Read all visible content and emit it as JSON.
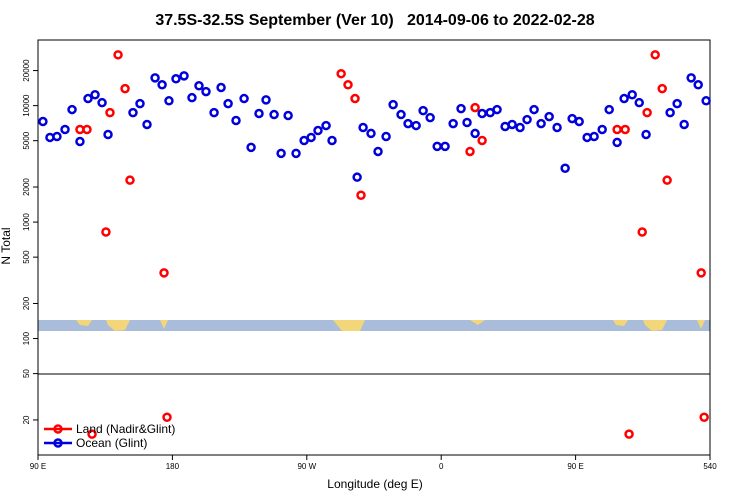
{
  "chart_data": {
    "type": "scatter",
    "title": "37.5S-32.5S September (Ver 10)   2014-09-06 to 2022-02-28",
    "x_label": "Longitude (deg E)",
    "y_label": "N Total",
    "log_y": true,
    "legend": "bottom-left",
    "xlim": [
      90,
      540
    ],
    "xticks": [
      {
        "value": 90,
        "label": "90 E"
      },
      180,
      {
        "value": 270,
        "label": "90 W"
      },
      {
        "value": 360,
        "label": "0"
      },
      {
        "value": 450,
        "label": "90 E"
      },
      540
    ],
    "ylim": [
      10,
      36600
    ],
    "yticks": [
      20,
      50,
      100,
      200,
      500,
      1000,
      2000,
      5000,
      10000,
      20000
    ],
    "series": [
      {
        "name": "Land (Nadir&Glint)",
        "color": "#ff0000",
        "x": [
          118.1,
          122.8,
          135.5,
          138.2,
          143.6,
          148.3,
          151.6,
          174.4,
          176.4,
          126.2,
          293.0,
          297.6,
          302.3,
          306.3,
          379.3,
          382.7,
          387.4,
          477.8,
          483.2,
          485.8,
          494.6,
          497.9,
          503.3,
          508.0,
          511.3,
          534.1,
          536.1
        ],
        "values": [
          6240,
          6240,
          822,
          8710,
          27300,
          14000,
          2290,
          366,
          21.1,
          15.1,
          18800,
          15100,
          11500,
          1700,
          4040,
          9620,
          5020,
          6240,
          6240,
          15.1,
          822,
          8710,
          27300,
          14000,
          2290,
          366,
          21.1
        ]
      },
      {
        "name": "Ocean (Glint)",
        "color": "#0000dd",
        "x": [
          93.3,
          98.0,
          102.7,
          108.1,
          112.8,
          118.1,
          123.5,
          128.2,
          132.9,
          136.9,
          153.6,
          158.3,
          163.0,
          168.4,
          173.1,
          177.7,
          182.4,
          187.8,
          193.1,
          197.8,
          202.5,
          207.9,
          212.6,
          217.3,
          222.6,
          228.0,
          232.7,
          238.0,
          242.7,
          248.1,
          252.8,
          257.5,
          262.8,
          268.2,
          272.9,
          277.5,
          282.9,
          286.9,
          303.7,
          307.7,
          313.0,
          317.7,
          323.1,
          327.8,
          333.1,
          337.8,
          343.2,
          347.9,
          352.6,
          357.3,
          362.6,
          368.0,
          373.3,
          377.3,
          382.7,
          387.4,
          392.8,
          397.4,
          402.8,
          407.5,
          412.8,
          417.5,
          422.2,
          426.9,
          432.3,
          437.6,
          443.0,
          447.7,
          452.4,
          457.7,
          462.4,
          467.8,
          472.5,
          477.8,
          482.5,
          487.9,
          492.6,
          497.2,
          513.3,
          518.0,
          522.7,
          527.4,
          532.1,
          537.4
        ],
        "values": [
          7300,
          5330,
          5430,
          6240,
          9250,
          4920,
          11500,
          12400,
          10600,
          5650,
          8710,
          10400,
          6890,
          17300,
          15100,
          11000,
          17000,
          18000,
          11700,
          14800,
          13200,
          8710,
          14300,
          10400,
          7450,
          11500,
          4380,
          8550,
          11200,
          8380,
          3890,
          8220,
          3890,
          5020,
          5330,
          6110,
          6740,
          5020,
          2430,
          6490,
          5770,
          4040,
          5430,
          10200,
          8380,
          7010,
          6740,
          9060,
          7890,
          4470,
          4470,
          7010,
          9420,
          7160,
          5770,
          8550,
          8710,
          9250,
          6620,
          6890,
          6490,
          7590,
          9250,
          7010,
          8050,
          6490,
          2900,
          7740,
          7300,
          5330,
          5430,
          6240,
          9250,
          4830,
          11500,
          12400,
          10600,
          5650,
          8710,
          10400,
          6890,
          17300,
          15100,
          11000
        ]
      }
    ]
  }
}
